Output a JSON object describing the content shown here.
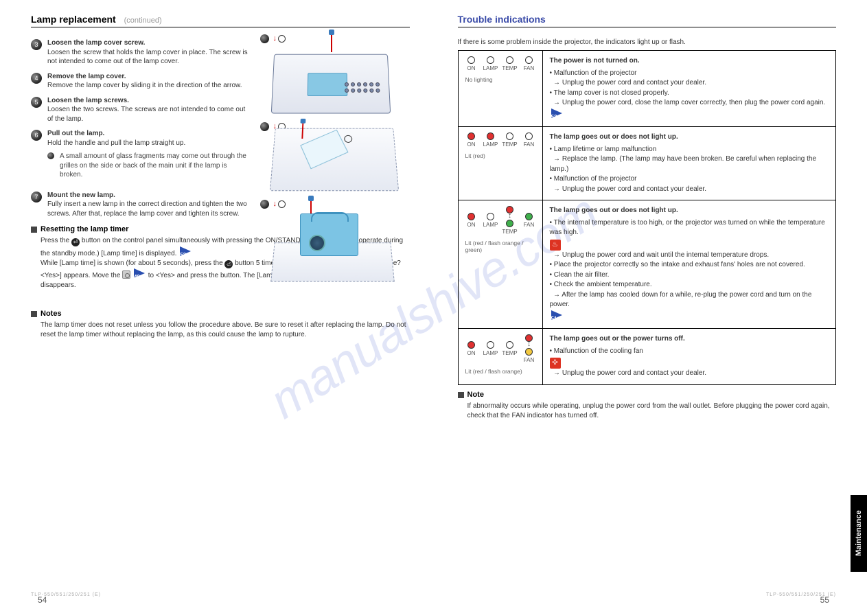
{
  "watermark": "manualshive.com",
  "right_tab": "Maintenance",
  "left": {
    "title": "Lamp replacement",
    "subtitle": "(continued)",
    "steps": [
      {
        "n": "3",
        "head": "Loosen the lamp cover screw.",
        "body": "Loosen the screw that holds the lamp cover in place. The screw is not intended to come out of the lamp cover."
      },
      {
        "n": "4",
        "head": "Remove the lamp cover.",
        "body": "Remove the lamp cover by sliding it in the direction of the arrow."
      },
      {
        "n": "5",
        "head": "Loosen the lamp screws.",
        "body": "Loosen the two screws. The screws are not intended to come out of the lamp."
      },
      {
        "n": "6",
        "head": "Pull out the lamp.",
        "body": "Hold the handle and pull the lamp straight up.",
        "note_lead": "•",
        "note": "A small amount of glass fragments may come out through the grilles on the side or back of the main unit if the lamp is broken."
      },
      {
        "n": "7",
        "head": "Mount the new lamp.",
        "body": "Fully insert a new lamp in the correct direction and tighten the two screws. After that, replace the lamp cover and tighten its screw."
      }
    ],
    "reset_title": "Resetting the lamp timer",
    "reset_text_lead": "Press the ",
    "reset_text_1": " button on the control panel simultaneously with pressing the ON/STANDBY button. (Do not operate during the standby mode.) [Lamp time] is displayed.",
    "ref52": "52",
    "reset_text_2": "While [Lamp time] is shown (for about 5 seconds), press the ",
    "reset_text_3": " button 5 times or more continuously. [Clear lamp time? <Yes>] appears. Move the ",
    "ref49": "49",
    "reset_text_4": " to <Yes> and press the button. The [Lamp time] is reset to zero and the display disappears.",
    "notes_title": "Notes",
    "notes_body": "The lamp timer does not reset unless you follow the procedure above. Be sure to reset it after replacing the lamp. Do not reset the lamp timer without replacing the lamp, as this could cause the lamp to rupture.",
    "illus": {
      "l3": "3",
      "l5": "5",
      "l6": "6"
    },
    "pagenum": "54",
    "foot": "TLP-550/551/250/251 (E)"
  },
  "right": {
    "title": "Trouble indications",
    "intro": "If there is some problem inside the projector, the indicators light up or flash.",
    "rows": [
      {
        "leds": [
          {
            "lbl": "ON",
            "cls": "off"
          },
          {
            "lbl": "LAMP",
            "cls": "off"
          },
          {
            "lbl": "TEMP",
            "cls": "off"
          },
          {
            "lbl": "FAN",
            "cls": "off"
          }
        ],
        "state": "No lighting",
        "prob_hd": "The power is not turned on.",
        "prob_body": "• Malfunction of the projector\n→ Unplug the power cord and contact your dealer.\n• The lamp cover is not closed properly.\n→ Unplug the power cord, close the lamp cover correctly, then plug the power cord again.",
        "ref": "53"
      },
      {
        "leds": [
          {
            "lbl": "ON",
            "cls": "red"
          },
          {
            "lbl": "LAMP",
            "cls": "red"
          },
          {
            "lbl": "TEMP",
            "cls": "off"
          },
          {
            "lbl": "FAN",
            "cls": "off"
          }
        ],
        "state": "Lit (red)",
        "prob_hd": "The lamp goes out or does not light up.",
        "prob_body": "• Lamp lifetime or lamp malfunction\n→ Replace the lamp. (The lamp may have been broken. Be careful when replacing the lamp.)\n• Malfunction of the projector\n→ Unplug the power cord and contact your dealer."
      },
      {
        "leds": [
          {
            "lbl": "ON",
            "cls": "red"
          },
          {
            "lbl": "LAMP",
            "cls": "off"
          },
          {
            "lbl": "TEMP",
            "cls": "red",
            "flash": true,
            "to": "green"
          },
          {
            "lbl": "FAN",
            "cls": "green"
          }
        ],
        "state": "Lit (red / flash orange / green)",
        "prob_hd": "The lamp goes out or does not light up.",
        "prob_body": "• The internal temperature is too high, or the projector was turned on while the temperature was high.\n→ Unplug the power cord and wait until the internal temperature drops.\n  • Place the projector correctly so the intake and exhaust fans' holes are not covered.\n  • Clean the air filter.\n  • Check the ambient temperature.\n→ After the lamp has cooled down for a while, re-plug the power cord and turn on the power.",
        "icon": "heat",
        "ref": "51"
      },
      {
        "leds": [
          {
            "lbl": "ON",
            "cls": "red"
          },
          {
            "lbl": "LAMP",
            "cls": "off"
          },
          {
            "lbl": "TEMP",
            "cls": "off"
          },
          {
            "lbl": "FAN",
            "cls": "red",
            "flash": true
          }
        ],
        "state": "Lit (red / flash orange)",
        "prob_hd": "The lamp goes out or the power turns off.",
        "prob_body": "• Malfunction of the cooling fan\n→ Unplug the power cord and contact your dealer.",
        "icon": "fan"
      }
    ],
    "note_title": "Note",
    "note_body": "If abnormality occurs while operating, unplug the power cord from the wall outlet. Before plugging the power cord again, check that the FAN indicator has turned off.",
    "pagenum": "55",
    "foot": "TLP-550/551/250/251 (E)"
  }
}
